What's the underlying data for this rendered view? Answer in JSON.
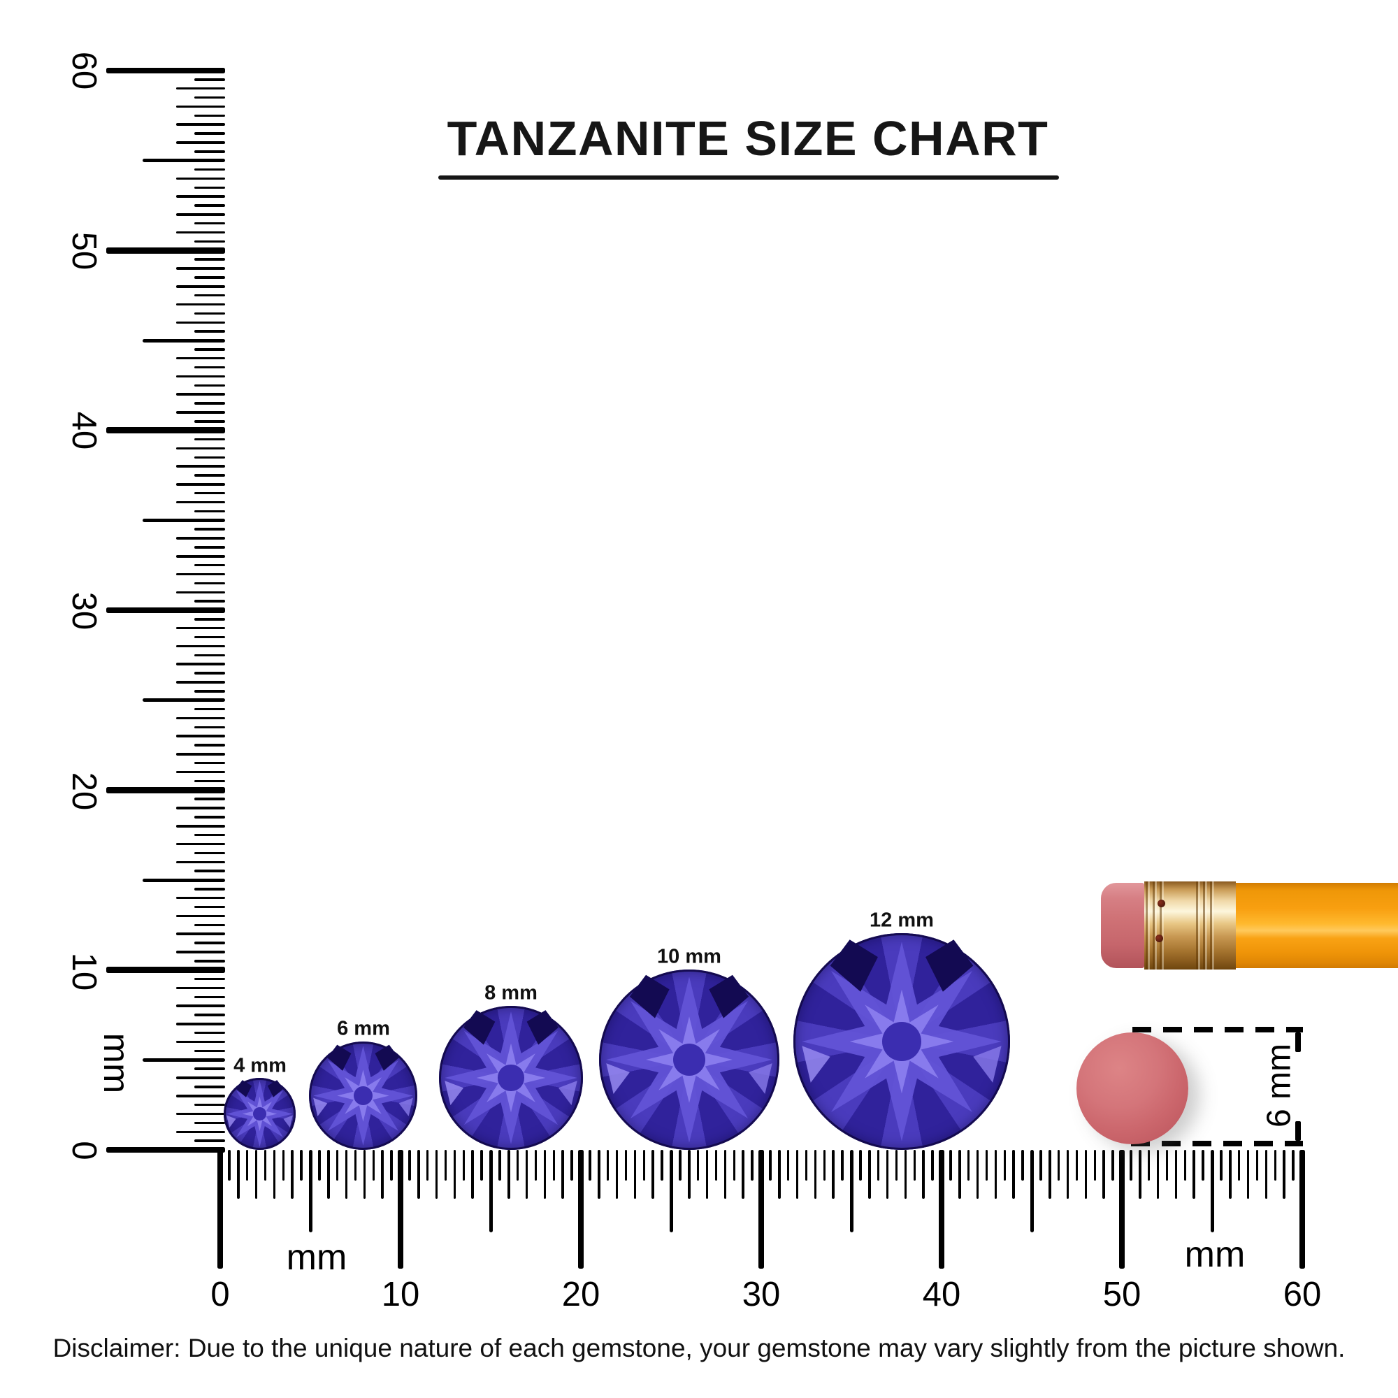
{
  "title": {
    "text": "TANZANITE SIZE CHART"
  },
  "rulers": {
    "vertical": {
      "unit_label": "mm",
      "major_labels": [
        "60",
        "50",
        "40",
        "30",
        "20",
        "10",
        "0"
      ],
      "range_mm": [
        0,
        60
      ],
      "tick_step_mm": 0.5
    },
    "horizontal": {
      "unit_label_left": "mm",
      "unit_label_right": "mm",
      "major_labels": [
        "0",
        "10",
        "20",
        "30",
        "40",
        "50",
        "60"
      ],
      "range_mm": [
        0,
        60
      ],
      "tick_step_mm": 0.5
    }
  },
  "gems": [
    {
      "label": "4 mm",
      "size_mm": 4
    },
    {
      "label": "6 mm",
      "size_mm": 6
    },
    {
      "label": "8 mm",
      "size_mm": 8
    },
    {
      "label": "10 mm",
      "size_mm": 10
    },
    {
      "label": "12 mm",
      "size_mm": 12
    }
  ],
  "eraser_dimension": {
    "label": "6 mm",
    "size_mm": 6
  },
  "disclaimer": {
    "text": "Disclaimer: Due to the unique nature of each gemstone, your gemstone may vary slightly from the picture shown."
  },
  "colors": {
    "ink": "#000000",
    "title_ink": "#161616",
    "gem_darkest": "#130a52",
    "gem_deep": "#30229b",
    "gem_primary": "#4a3bbd",
    "gem_mid": "#6253d6",
    "gem_light": "#8d80f0",
    "eraser_pink": "#d4757a",
    "pencil_orange": "#f89f10",
    "ferrule_gold": "#e8c684"
  }
}
